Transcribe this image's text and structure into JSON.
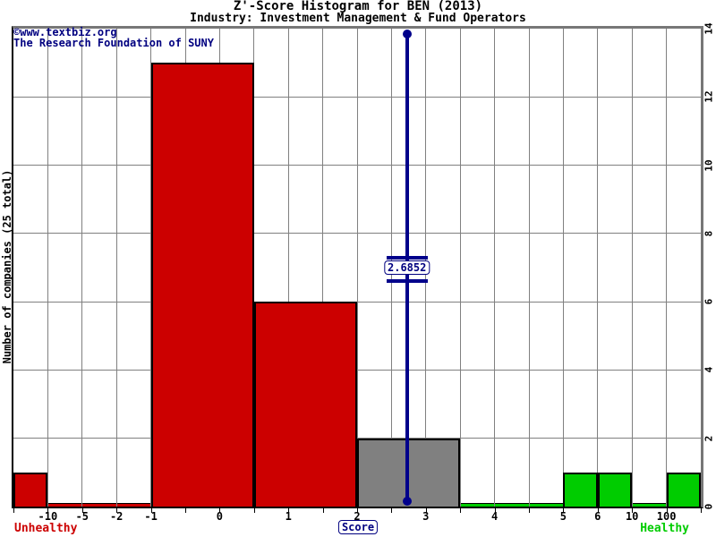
{
  "header": {
    "title": "Z'-Score Histogram for BEN (2013)",
    "subtitle": "Industry: Investment Management & Fund Operators"
  },
  "watermark": {
    "line1": "©www.textbiz.org",
    "line2": "The Research Foundation of SUNY"
  },
  "chart_data": {
    "type": "bar",
    "title": "Z'-Score Histogram for BEN (2013)",
    "subtitle": "Industry: Investment Management & Fund Operators",
    "xlabel": "Score",
    "ylabel": "Number of companies (25 total)",
    "total_companies": 25,
    "ylim": [
      0,
      14
    ],
    "right_axis_ticks": [
      0,
      2,
      4,
      6,
      8,
      10,
      12,
      14
    ],
    "slots_total": 20,
    "x_ticks": [
      {
        "label": "-10",
        "slot": 1
      },
      {
        "label": "-5",
        "slot": 2
      },
      {
        "label": "-2",
        "slot": 3
      },
      {
        "label": "-1",
        "slot": 4
      },
      {
        "label": "0",
        "slot": 6
      },
      {
        "label": "1",
        "slot": 8
      },
      {
        "label": "2",
        "slot": 10
      },
      {
        "label": "3",
        "slot": 12
      },
      {
        "label": "4",
        "slot": 14
      },
      {
        "label": "5",
        "slot": 16
      },
      {
        "label": "6",
        "slot": 17
      },
      {
        "label": "10",
        "slot": 18
      },
      {
        "label": "100",
        "slot": 19
      }
    ],
    "bins": [
      {
        "range": "< -10",
        "slot_from": 0,
        "slot_to": 1,
        "count": 1,
        "zone": "unhealthy"
      },
      {
        "range": "-10 to -5",
        "slot_from": 1,
        "slot_to": 2,
        "count": 0,
        "zone": "unhealthy"
      },
      {
        "range": "-5 to -2",
        "slot_from": 2,
        "slot_to": 3,
        "count": 0,
        "zone": "unhealthy"
      },
      {
        "range": "-2 to -1",
        "slot_from": 3,
        "slot_to": 4,
        "count": 0,
        "zone": "unhealthy"
      },
      {
        "range": "-1 to 0.5",
        "slot_from": 4,
        "slot_to": 7,
        "count": 13,
        "zone": "unhealthy"
      },
      {
        "range": "0.5 to 2",
        "slot_from": 7,
        "slot_to": 10,
        "count": 6,
        "zone": "unhealthy"
      },
      {
        "range": "2 to 3.5",
        "slot_from": 10,
        "slot_to": 13,
        "count": 2,
        "zone": "middle"
      },
      {
        "range": "3.5 to 4",
        "slot_from": 13,
        "slot_to": 14,
        "count": 0,
        "zone": "healthy"
      },
      {
        "range": "4 to 5",
        "slot_from": 14,
        "slot_to": 16,
        "count": 0,
        "zone": "healthy"
      },
      {
        "range": "5 to 6",
        "slot_from": 16,
        "slot_to": 17,
        "count": 1,
        "zone": "healthy"
      },
      {
        "range": "6 to 10",
        "slot_from": 17,
        "slot_to": 18,
        "count": 1,
        "zone": "healthy"
      },
      {
        "range": "10 to 100",
        "slot_from": 18,
        "slot_to": 19,
        "count": 0,
        "zone": "healthy"
      },
      {
        "range": "> 100",
        "slot_from": 19,
        "slot_to": 20,
        "count": 1,
        "zone": "healthy"
      }
    ],
    "marker": {
      "value": 2.6852,
      "label": "2.6852",
      "slot": 11.45
    },
    "zones": {
      "left_label": "Unhealthy",
      "right_label": "Healthy"
    },
    "colors": {
      "unhealthy": "#cc0000",
      "middle": "#808080",
      "healthy": "#00cc00",
      "marker": "#00008b",
      "grid": "#808080",
      "text_navy": "#000080"
    }
  }
}
